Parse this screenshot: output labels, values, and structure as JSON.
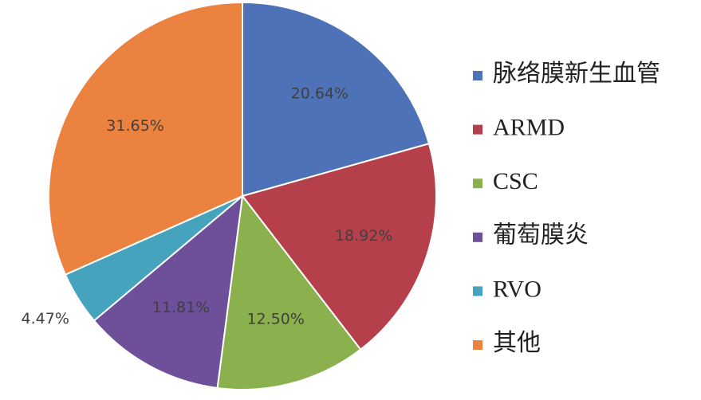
{
  "chart_data": {
    "type": "pie",
    "categories": [
      "脉络膜新生血管",
      "ARMD",
      "CSC",
      "葡萄膜炎",
      "RVO",
      "其他"
    ],
    "values": [
      20.64,
      18.92,
      12.5,
      11.81,
      4.47,
      31.65
    ],
    "value_labels": [
      "20.64%",
      "18.92%",
      "12.50%",
      "11.81%",
      "4.47%",
      "31.65%"
    ],
    "colors": [
      "#4e72b8",
      "#b5404b",
      "#8bb04e",
      "#6e4f9a",
      "#45a3bd",
      "#ec8240"
    ],
    "legend": "right"
  }
}
